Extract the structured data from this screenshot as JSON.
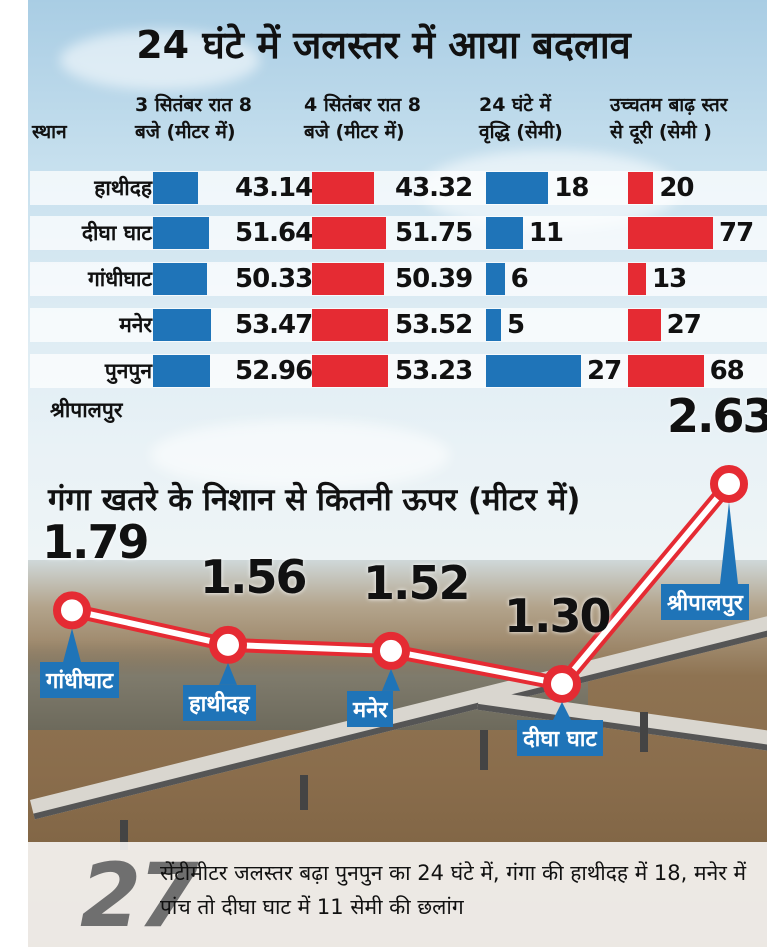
{
  "title": "24 घंटे में जलस्तर में आया बदलाव",
  "table": {
    "place_header": "स्थान",
    "col_headers": [
      "3 सितंबर रात 8\nबजे (मीटर में)",
      "4 सितंबर रात 8\nबजे (मीटर में)",
      "24 घंटे में\nवृद्धि (सेमी)",
      "उच्चतम बाढ़ स्तर\nसे दूरी (सेमी )"
    ],
    "extra_place": "श्रीपालपुर"
  },
  "chart_data": [
    {
      "type": "bar",
      "categories": [
        "हाथीदह",
        "दीघा घाट",
        "गांधीघाट",
        "मनेर",
        "पुनपुन"
      ],
      "series": [
        {
          "name": "3 सितंबर रात 8 बजे (मीटर में)",
          "values": [
            43.14,
            51.64,
            50.33,
            53.47,
            52.96
          ],
          "color": "#1f74b8"
        },
        {
          "name": "4 सितंबर रात 8 बजे (मीटर में)",
          "values": [
            43.32,
            51.75,
            50.39,
            53.52,
            53.23
          ],
          "color": "#e52b33"
        },
        {
          "name": "24 घंटे में वृद्धि (सेमी)",
          "values": [
            18,
            11,
            6,
            5,
            27
          ],
          "color": "#1f74b8"
        },
        {
          "name": "उच्चतम बाढ़ स्तर से दूरी (सेमी )",
          "values": [
            20,
            77,
            13,
            27,
            68
          ],
          "color": "#e52b33"
        }
      ],
      "value_labels": [
        [
          "43.14",
          "51.64",
          "50.33",
          "53.47",
          "52.96"
        ],
        [
          "43.32",
          "51.75",
          "50.39",
          "53.52",
          "53.23"
        ],
        [
          "18",
          "11",
          "6",
          "5",
          "27"
        ],
        [
          "20",
          "77",
          "13",
          "27",
          "68"
        ]
      ]
    },
    {
      "type": "line",
      "title": "गंगा खतरे के निशान से कितनी ऊपर (मीटर में)",
      "categories": [
        "गांधीघाट",
        "हाथीदह",
        "मनेर",
        "दीघा घाट",
        "श्रीपालपुर"
      ],
      "values": [
        1.79,
        1.56,
        1.52,
        1.3,
        2.63
      ],
      "labels": [
        "1.79",
        "1.56",
        "1.52",
        "1.30",
        "2.63"
      ]
    }
  ],
  "bottom": {
    "big_number": "27",
    "text": "सेंटीमीटर जलस्तर बढ़ा पुनपुन का 24 घंटे में, गंगा की हाथीदह में 18, मनेर में पांच तो दीघा घाट में 11 सेमी की छलांग"
  },
  "colors": {
    "blue": "#1f74b8",
    "red": "#e52b33"
  }
}
